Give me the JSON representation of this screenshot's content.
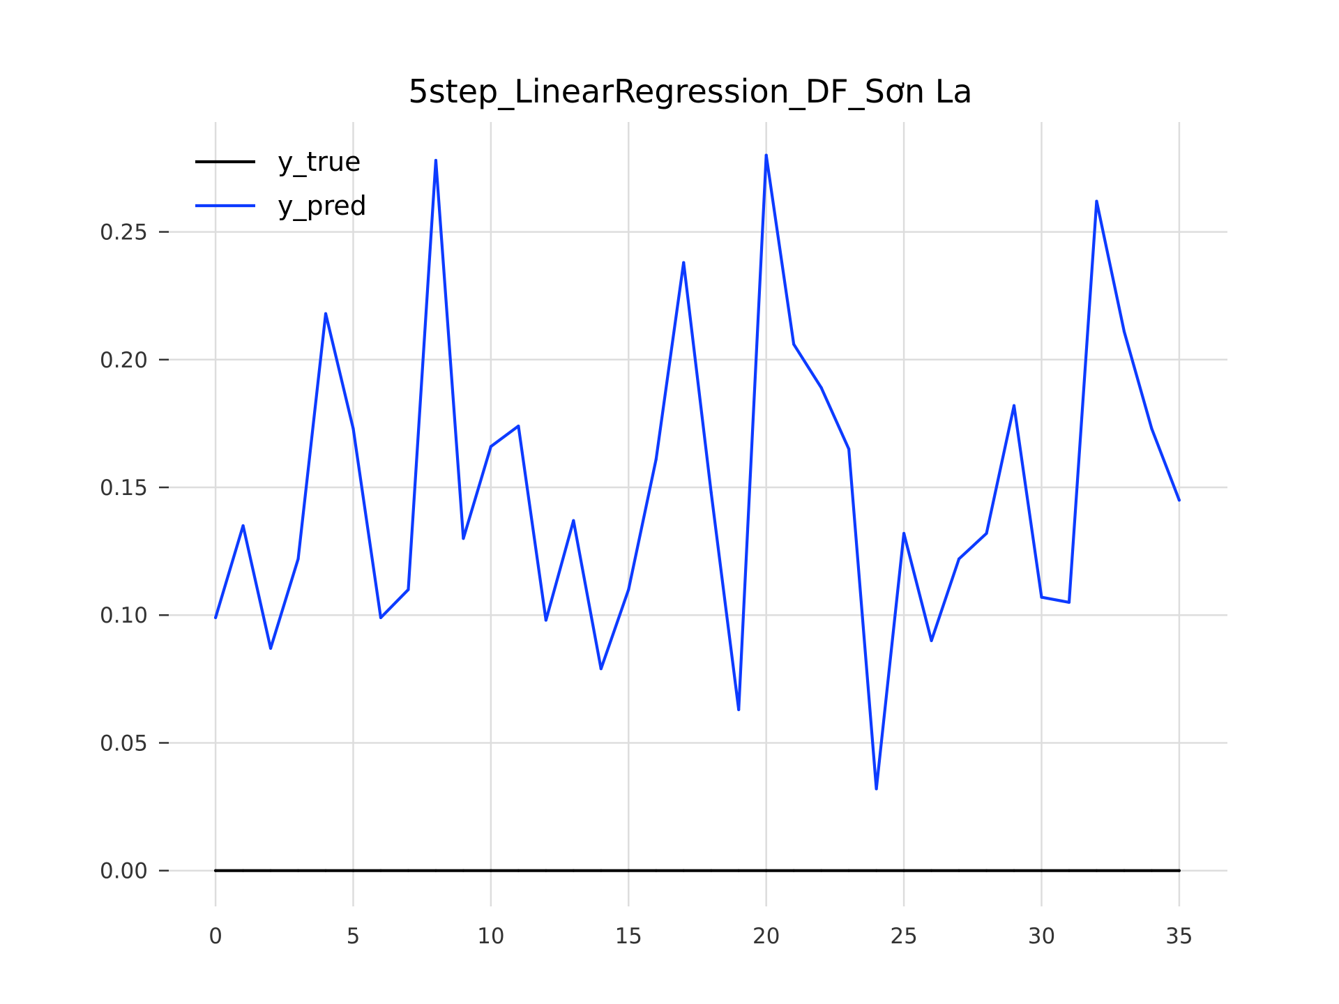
{
  "chart_data": {
    "type": "line",
    "title": "5step_LinearRegression_DF_Sơn La",
    "xlabel": "",
    "ylabel": "",
    "xlim": [
      -1.75,
      36.75
    ],
    "ylim": [
      -0.014,
      0.293
    ],
    "xticks": [
      0,
      5,
      10,
      15,
      20,
      25,
      30,
      35
    ],
    "yticks": [
      0.0,
      0.05,
      0.1,
      0.15,
      0.2,
      0.25
    ],
    "ytick_labels": [
      "0.00",
      "0.05",
      "0.10",
      "0.15",
      "0.20",
      "0.25"
    ],
    "grid": true,
    "legend_position": "top-left",
    "x": [
      0,
      1,
      2,
      3,
      4,
      5,
      6,
      7,
      8,
      9,
      10,
      11,
      12,
      13,
      14,
      15,
      16,
      17,
      18,
      19,
      20,
      21,
      22,
      23,
      24,
      25,
      26,
      27,
      28,
      29,
      30,
      31,
      32,
      33,
      34,
      35
    ],
    "series": [
      {
        "name": "y_true",
        "color": "#000000",
        "values": [
          0,
          0,
          0,
          0,
          0,
          0,
          0,
          0,
          0,
          0,
          0,
          0,
          0,
          0,
          0,
          0,
          0,
          0,
          0,
          0,
          0,
          0,
          0,
          0,
          0,
          0,
          0,
          0,
          0,
          0,
          0,
          0,
          0,
          0,
          0,
          0
        ]
      },
      {
        "name": "y_pred",
        "color": "#0d3bff",
        "values": [
          0.099,
          0.135,
          0.087,
          0.122,
          0.218,
          0.173,
          0.099,
          0.11,
          0.278,
          0.13,
          0.166,
          0.174,
          0.098,
          0.137,
          0.079,
          0.11,
          0.161,
          0.238,
          0.148,
          0.063,
          0.28,
          0.206,
          0.189,
          0.165,
          0.032,
          0.132,
          0.09,
          0.122,
          0.132,
          0.182,
          0.107,
          0.105,
          0.262,
          0.211,
          0.173,
          0.145
        ]
      }
    ]
  }
}
